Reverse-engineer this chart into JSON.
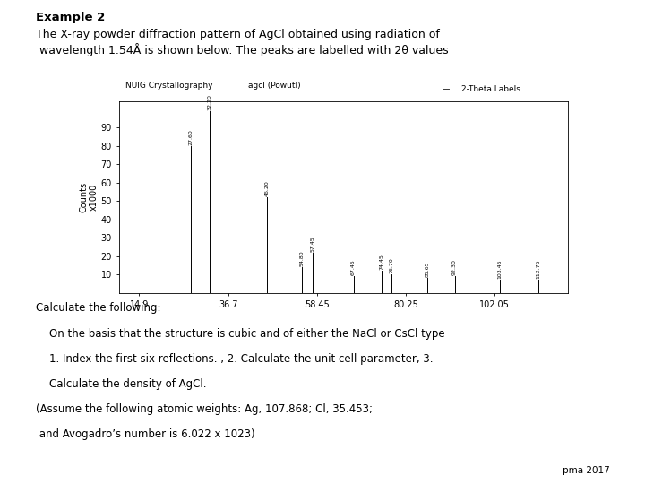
{
  "title_header": "Example 2",
  "subtitle": "The X-ray powder diffraction pattern of AgCl obtained using radiation of\n wavelength 1.54Å is shown below. The peaks are labelled with 2θ values",
  "chart_title_left": "NUIG Crystallography",
  "chart_title_right": "agcl (Powutl)",
  "legend_label": "2-Theta Labels",
  "ylabel": "Counts\nx1000",
  "xlabel_ticks": [
    14.9,
    36.7,
    58.45,
    80.25,
    102.05
  ],
  "yticks": [
    10,
    20,
    30,
    40,
    50,
    60,
    70,
    80,
    90
  ],
  "peaks": [
    {
      "two_theta": 27.6,
      "intensity": 80,
      "label": "27.60"
    },
    {
      "two_theta": 32.2,
      "intensity": 99,
      "label": "32.20"
    },
    {
      "two_theta": 46.2,
      "intensity": 52,
      "label": "46.20"
    },
    {
      "two_theta": 54.8,
      "intensity": 14,
      "label": "54.80"
    },
    {
      "two_theta": 57.45,
      "intensity": 22,
      "label": "57.45"
    },
    {
      "two_theta": 67.45,
      "intensity": 9,
      "label": "67.45"
    },
    {
      "two_theta": 74.45,
      "intensity": 12,
      "label": "74.45"
    },
    {
      "two_theta": 76.7,
      "intensity": 10,
      "label": "76.70"
    },
    {
      "two_theta": 85.65,
      "intensity": 8,
      "label": "85.65"
    },
    {
      "two_theta": 92.3,
      "intensity": 9,
      "label": "92.30"
    },
    {
      "two_theta": 103.45,
      "intensity": 7,
      "label": "103.45"
    },
    {
      "two_theta": 112.75,
      "intensity": 7,
      "label": "112.75"
    }
  ],
  "xmin": 10,
  "xmax": 120,
  "ymin": 0,
  "ymax": 104,
  "footer_lines": [
    {
      "text": "Calculate the following:",
      "indent": 0.055,
      "bold": false
    },
    {
      "text": "    On the basis that the structure is cubic and of either the NaCl or CsCl type",
      "indent": 0.055,
      "bold": false
    },
    {
      "text": "    1. Index the first six reflections. , 2. Calculate the unit cell parameter, 3.",
      "indent": 0.055,
      "bold": false
    },
    {
      "text": "    Calculate the density of AgCl.",
      "indent": 0.055,
      "bold": false
    },
    {
      "text": "(Assume the following atomic weights: Ag, 107.868; Cl, 35.453;",
      "indent": 0.055,
      "bold": false
    },
    {
      "text": " and Avogadro’s number is 6.022 x 1023)",
      "indent": 0.055,
      "bold": false
    }
  ],
  "watermark": "pma 2017",
  "bg_color": "#ffffff"
}
